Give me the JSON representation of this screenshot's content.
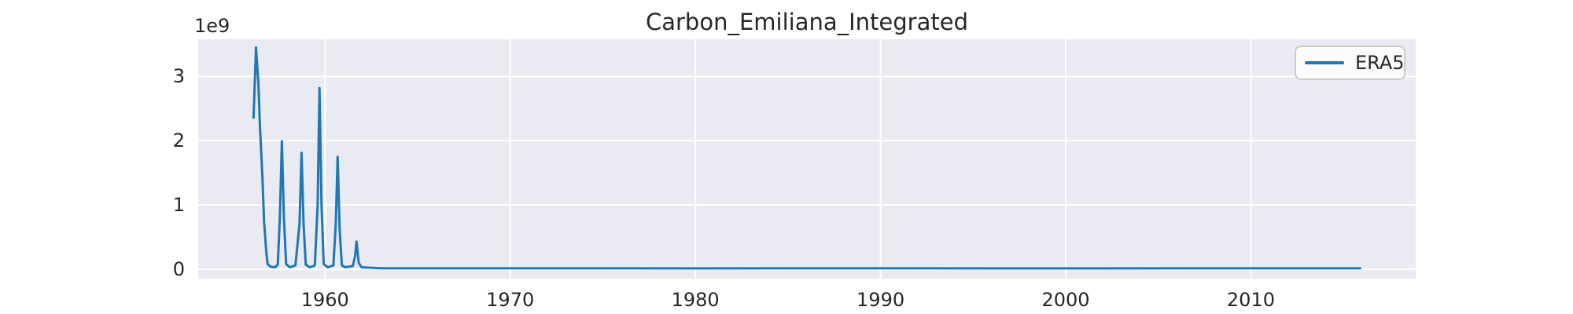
{
  "figure": {
    "title": "Carbon_Emiliana_Integrated",
    "offset_text": "1e9",
    "background_color": "#ffffff",
    "text_color": "#262626"
  },
  "legend": {
    "position": "upper right",
    "entries": [
      {
        "label": "ERA5",
        "color": "#1f77b4"
      }
    ]
  },
  "chart_data": {
    "type": "line",
    "title": "Carbon_Emiliana_Integrated",
    "xlabel": "",
    "ylabel": "",
    "y_offset_label": "1e9",
    "grid": true,
    "plot_bg_color": "#eaeaf2",
    "grid_color": "#ffffff",
    "xlim": [
      1953.15,
      2018.9
    ],
    "ylim_e9": [
      -0.147,
      3.58
    ],
    "x_ticks": [
      1960,
      1970,
      1980,
      1990,
      2000,
      2010
    ],
    "y_ticks_e9": [
      0,
      1,
      2,
      3
    ],
    "series": [
      {
        "name": "ERA5",
        "color": "#1f77b4",
        "units": "y values in multiples of 1e9",
        "points": [
          [
            1956.14,
            2.36
          ],
          [
            1956.27,
            3.45
          ],
          [
            1956.4,
            2.9
          ],
          [
            1956.49,
            2.2
          ],
          [
            1956.62,
            1.42
          ],
          [
            1956.71,
            0.73
          ],
          [
            1956.83,
            0.27
          ],
          [
            1956.9,
            0.08
          ],
          [
            1957.05,
            0.04
          ],
          [
            1957.3,
            0.03
          ],
          [
            1957.45,
            0.07
          ],
          [
            1957.56,
            0.8
          ],
          [
            1957.67,
            1.99
          ],
          [
            1957.78,
            0.8
          ],
          [
            1957.9,
            0.08
          ],
          [
            1958.1,
            0.03
          ],
          [
            1958.4,
            0.06
          ],
          [
            1958.62,
            0.7
          ],
          [
            1958.73,
            1.81
          ],
          [
            1958.84,
            0.7
          ],
          [
            1958.96,
            0.07
          ],
          [
            1959.18,
            0.03
          ],
          [
            1959.45,
            0.06
          ],
          [
            1959.6,
            1.0
          ],
          [
            1959.7,
            2.82
          ],
          [
            1959.81,
            1.0
          ],
          [
            1959.93,
            0.08
          ],
          [
            1960.15,
            0.03
          ],
          [
            1960.45,
            0.06
          ],
          [
            1960.58,
            0.7
          ],
          [
            1960.68,
            1.75
          ],
          [
            1960.79,
            0.6
          ],
          [
            1960.91,
            0.06
          ],
          [
            1961.1,
            0.03
          ],
          [
            1961.5,
            0.05
          ],
          [
            1961.62,
            0.2
          ],
          [
            1961.7,
            0.43
          ],
          [
            1961.82,
            0.1
          ],
          [
            1961.97,
            0.03
          ],
          [
            1963.0,
            0.015
          ],
          [
            1970.0,
            0.015
          ],
          [
            1980.0,
            0.013
          ],
          [
            1990.0,
            0.015
          ],
          [
            2000.0,
            0.013
          ],
          [
            2010.0,
            0.015
          ],
          [
            2015.9,
            0.015
          ]
        ]
      }
    ]
  }
}
